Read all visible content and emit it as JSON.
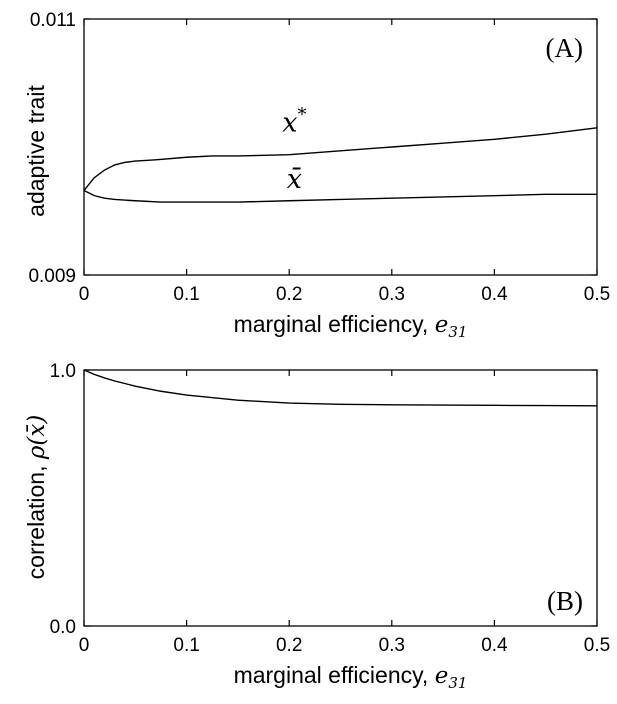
{
  "chart_data": [
    {
      "type": "line",
      "panel_label": "(A)",
      "xlabel": "marginal efficiency, ",
      "xlabel_symbol": "e",
      "xlabel_subscript": "31",
      "ylabel": "adaptive trait",
      "xlim": [
        0,
        0.5
      ],
      "ylim": [
        0.009,
        0.011
      ],
      "xticks": [
        0,
        0.1,
        0.2,
        0.3,
        0.4,
        0.5
      ],
      "xtick_labels": [
        "0",
        "0.1",
        "0.2",
        "0.3",
        "0.4",
        "0.5"
      ],
      "yticks": [
        0.009,
        0.011
      ],
      "ytick_labels": [
        "0.009",
        "0.011"
      ],
      "series": [
        {
          "name": "x*",
          "label_main": "x",
          "label_sup": "*",
          "label_at": [
            0.205,
            0.01012
          ],
          "x": [
            0,
            0.005,
            0.01,
            0.02,
            0.03,
            0.04,
            0.05,
            0.07,
            0.1,
            0.125,
            0.15,
            0.2,
            0.25,
            0.3,
            0.35,
            0.4,
            0.45,
            0.5
          ],
          "y": [
            0.00966,
            0.00971,
            0.00976,
            0.00982,
            0.00986,
            0.00988,
            0.00989,
            0.0099,
            0.00992,
            0.00993,
            0.00993,
            0.00994,
            0.00997,
            0.01,
            0.01003,
            0.01006,
            0.0101,
            0.01015
          ]
        },
        {
          "name": "x̄",
          "label_main": "x̄",
          "label_sup": "",
          "label_at": [
            0.205,
            0.00968
          ],
          "x": [
            0,
            0.01,
            0.02,
            0.03,
            0.05,
            0.075,
            0.1,
            0.125,
            0.15,
            0.2,
            0.25,
            0.3,
            0.35,
            0.4,
            0.45,
            0.5
          ],
          "y": [
            0.00966,
            0.00962,
            0.0096,
            0.00959,
            0.00958,
            0.00957,
            0.00957,
            0.00957,
            0.00957,
            0.00958,
            0.00959,
            0.0096,
            0.00961,
            0.00962,
            0.00963,
            0.00963
          ]
        }
      ]
    },
    {
      "type": "line",
      "panel_label": "(B)",
      "xlabel": "marginal efficiency, ",
      "xlabel_symbol": "e",
      "xlabel_subscript": "31",
      "ylabel": "correlation, ",
      "ylabel_symbol": "ρ(x̄)",
      "xlim": [
        0,
        0.5
      ],
      "ylim": [
        0,
        1
      ],
      "xticks": [
        0,
        0.1,
        0.2,
        0.3,
        0.4,
        0.5
      ],
      "xtick_labels": [
        "0",
        "0.1",
        "0.2",
        "0.3",
        "0.4",
        "0.5"
      ],
      "yticks": [
        0,
        1
      ],
      "ytick_labels": [
        "0.0",
        "1.0"
      ],
      "series": [
        {
          "name": "",
          "x": [
            0,
            0.01,
            0.02,
            0.03,
            0.05,
            0.075,
            0.1,
            0.15,
            0.2,
            0.25,
            0.3,
            0.35,
            0.4,
            0.45,
            0.5
          ],
          "y": [
            1.0,
            0.983,
            0.969,
            0.957,
            0.937,
            0.917,
            0.902,
            0.882,
            0.871,
            0.866,
            0.864,
            0.863,
            0.862,
            0.861,
            0.86
          ]
        }
      ]
    }
  ]
}
